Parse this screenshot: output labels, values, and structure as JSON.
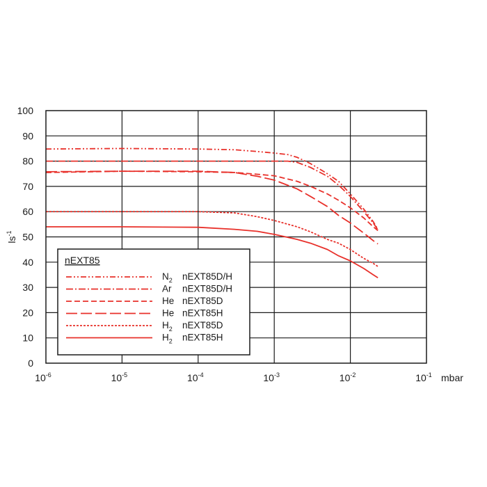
{
  "chart_data": {
    "type": "line",
    "title": "",
    "xlabel": "mbar",
    "ylabel_base": "ls",
    "ylabel_sup": "-1",
    "x_scale": "log",
    "xlim": [
      1e-06,
      0.1
    ],
    "ylim": [
      0,
      100
    ],
    "grid": true,
    "y_ticks": [
      "0",
      "10",
      "20",
      "30",
      "40",
      "50",
      "60",
      "70",
      "80",
      "90",
      "100"
    ],
    "x_ticks": [
      {
        "base": "10",
        "exp": "-6"
      },
      {
        "base": "10",
        "exp": "-5"
      },
      {
        "base": "10",
        "exp": "-4"
      },
      {
        "base": "10",
        "exp": "-3"
      },
      {
        "base": "10",
        "exp": "-2"
      },
      {
        "base": "10",
        "exp": "-1"
      }
    ],
    "legend": {
      "title": "nEXT85",
      "position": "bottom-left"
    },
    "series": [
      {
        "gas": "N",
        "gas_sub": "2",
        "model": "nEXT85D/H",
        "color": "#e8302a",
        "dash": "8 3 2 3 2 3",
        "x": [
          1e-06,
          1e-05,
          0.0001,
          0.0003,
          0.0006,
          0.001,
          0.0015,
          0.002,
          0.003,
          0.005,
          0.007,
          0.01,
          0.015,
          0.02,
          0.023
        ],
        "y": [
          84.8,
          85.0,
          84.8,
          84.5,
          83.8,
          83.2,
          82.6,
          81.5,
          79.0,
          75.0,
          72.0,
          67.0,
          61.0,
          56.0,
          53.0
        ]
      },
      {
        "gas": "Ar",
        "gas_sub": "",
        "model": "nEXT85D/H",
        "color": "#e8302a",
        "dash": "10 3 2 3",
        "x": [
          1e-06,
          1e-05,
          0.0001,
          0.0005,
          0.001,
          0.0015,
          0.002,
          0.003,
          0.005,
          0.007,
          0.01,
          0.015,
          0.02,
          0.023
        ],
        "y": [
          80.0,
          80.0,
          80.0,
          80.0,
          80.0,
          80.0,
          79.5,
          77.5,
          74.0,
          70.5,
          66.0,
          60.0,
          55.5,
          52.8
        ]
      },
      {
        "gas": "He",
        "gas_sub": "",
        "model": "nEXT85D",
        "color": "#e8302a",
        "dash": "8 4",
        "x": [
          1e-06,
          1e-05,
          0.0001,
          0.0003,
          0.0006,
          0.001,
          0.002,
          0.003,
          0.005,
          0.007,
          0.01,
          0.015,
          0.02,
          0.023
        ],
        "y": [
          75.5,
          76.0,
          75.8,
          75.5,
          74.8,
          74.2,
          72.0,
          70.0,
          67.0,
          64.5,
          61.5,
          57.5,
          54.0,
          52.5
        ]
      },
      {
        "gas": "He",
        "gas_sub": "",
        "model": "nEXT85H",
        "color": "#e8302a",
        "dash": "16 5",
        "x": [
          1e-06,
          1e-05,
          0.0001,
          0.0003,
          0.0006,
          0.001,
          0.002,
          0.003,
          0.005,
          0.007,
          0.01,
          0.015,
          0.02,
          0.023
        ],
        "y": [
          75.8,
          76.0,
          76.0,
          75.5,
          74.0,
          72.5,
          69.0,
          66.0,
          62.0,
          58.5,
          55.5,
          51.5,
          48.5,
          47.2
        ]
      },
      {
        "gas": "H",
        "gas_sub": "2",
        "model": "nEXT85D",
        "color": "#e8302a",
        "dash": "3 2",
        "x": [
          1e-06,
          1e-05,
          0.0001,
          0.0003,
          0.0006,
          0.001,
          0.002,
          0.003,
          0.005,
          0.007,
          0.01,
          0.015,
          0.02,
          0.023
        ],
        "y": [
          60.0,
          60.0,
          60.0,
          59.5,
          58.0,
          56.5,
          54.0,
          52.0,
          49.0,
          47.5,
          45.0,
          41.5,
          39.5,
          38.3
        ]
      },
      {
        "gas": "H",
        "gas_sub": "2",
        "model": "nEXT85H",
        "color": "#e8302a",
        "dash": "",
        "x": [
          1e-06,
          1e-05,
          0.0001,
          0.0003,
          0.0006,
          0.001,
          0.002,
          0.003,
          0.005,
          0.007,
          0.01,
          0.015,
          0.02,
          0.023
        ],
        "y": [
          54.0,
          54.0,
          53.8,
          53.0,
          52.2,
          51.0,
          49.0,
          47.5,
          45.0,
          42.5,
          40.5,
          37.5,
          35.0,
          33.8
        ]
      }
    ]
  }
}
